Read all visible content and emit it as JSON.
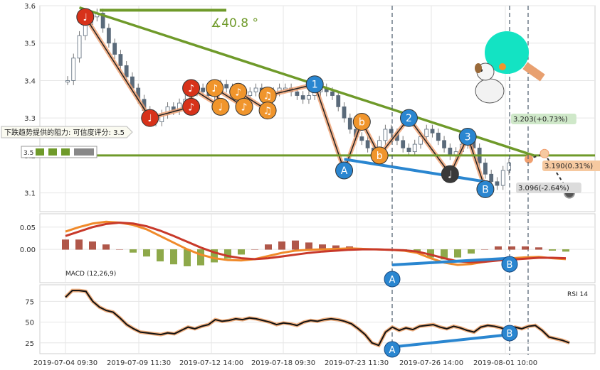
{
  "chart_data": {
    "type": "candlestick-with-indicators",
    "x_ticks": [
      "2019-07-04 09:30",
      "2019-07-09 11:30",
      "2019-07-12 14:00",
      "2019-07-18 09:30",
      "2019-07-23 11:30",
      "2019-07-26 14:00",
      "2019-08-01 10:00"
    ],
    "price_panel": {
      "ylim": [
        3.05,
        3.6
      ],
      "y_ticks": [
        3.1,
        3.2,
        3.3,
        3.4,
        3.5,
        3.6
      ],
      "close": [
        3.4,
        3.46,
        3.52,
        3.55,
        3.57,
        3.58,
        3.54,
        3.5,
        3.47,
        3.44,
        3.41,
        3.38,
        3.35,
        3.32,
        3.3,
        3.29,
        3.31,
        3.33,
        3.32,
        3.34,
        3.35,
        3.37,
        3.38,
        3.37,
        3.36,
        3.38,
        3.39,
        3.38,
        3.37,
        3.36,
        3.36,
        3.37,
        3.38,
        3.37,
        3.36,
        3.37,
        3.38,
        3.38,
        3.37,
        3.36,
        3.35,
        3.36,
        3.37,
        3.38,
        3.37,
        3.36,
        3.33,
        3.3,
        3.27,
        3.25,
        3.24,
        3.22,
        3.2,
        3.24,
        3.27,
        3.26,
        3.24,
        3.22,
        3.21,
        3.23,
        3.25,
        3.27,
        3.26,
        3.24,
        3.22,
        3.2,
        3.21,
        3.23,
        3.24,
        3.22,
        3.18,
        3.15,
        3.13,
        3.12,
        3.16,
        3.18
      ],
      "resistance_label": "下跌趋势提供的阻力: 可信度评分:  3.5",
      "angle_label": "∡40.8 °",
      "price_labels": [
        {
          "text": "3.203(+0.73%)",
          "color": "#cfe8c9"
        },
        {
          "text": "3.190(0.31%)",
          "color": "#f6c9a0"
        },
        {
          "text": "3.096(-2.64%)",
          "color": "#dcdcdc"
        }
      ],
      "level_label": "3.5",
      "pattern_markers": [
        {
          "label": "♩",
          "color": "#d7321a",
          "t": 3,
          "v": 3.57
        },
        {
          "label": "♩",
          "color": "#d7321a",
          "t": 14,
          "v": 3.3
        },
        {
          "label": "♪",
          "color": "#d7321a",
          "t": 21,
          "v": 3.38
        },
        {
          "label": "♪",
          "color": "#d7321a",
          "t": 21,
          "v": 3.33
        },
        {
          "label": "♪",
          "color": "#f0952c",
          "t": 25,
          "v": 3.38
        },
        {
          "label": "♩",
          "color": "#f0952c",
          "t": 26,
          "v": 3.33
        },
        {
          "label": "♪",
          "color": "#f0952c",
          "t": 29,
          "v": 3.37
        },
        {
          "label": "♪",
          "color": "#f0952c",
          "t": 30,
          "v": 3.33
        },
        {
          "label": "♫",
          "color": "#f0952c",
          "t": 34,
          "v": 3.36
        },
        {
          "label": "♫",
          "color": "#f0952c",
          "t": 34,
          "v": 3.32
        },
        {
          "label": "1",
          "color": "#2a86d0",
          "t": 42,
          "v": 3.39
        },
        {
          "label": "A",
          "color": "#2a86d0",
          "t": 47,
          "v": 3.16
        },
        {
          "label": "b",
          "color": "#f0952c",
          "t": 50,
          "v": 3.29
        },
        {
          "label": "b",
          "color": "#f0952c",
          "t": 53,
          "v": 3.2
        },
        {
          "label": "2",
          "color": "#2a86d0",
          "t": 58,
          "v": 3.3
        },
        {
          "label": "♩",
          "color": "#3a3a3a",
          "t": 65,
          "v": 3.15
        },
        {
          "label": "3",
          "color": "#2a86d0",
          "t": 68,
          "v": 3.25
        },
        {
          "label": "B",
          "color": "#2a86d0",
          "t": 71,
          "v": 3.11
        }
      ]
    },
    "macd_panel": {
      "label": "MACD (12,26,9)",
      "ylim": [
        -0.075,
        0.08
      ],
      "y_ticks": [
        0.0,
        0.05
      ],
      "macd": [
        0.04,
        0.05,
        0.058,
        0.062,
        0.06,
        0.055,
        0.045,
        0.03,
        0.015,
        0.0,
        -0.012,
        -0.02,
        -0.024,
        -0.025,
        -0.022,
        -0.015,
        -0.008,
        -0.003,
        -0.001,
        0.0,
        0.001,
        0.002,
        0.001,
        0.0,
        -0.001,
        -0.003,
        -0.008,
        -0.02,
        -0.03,
        -0.035,
        -0.033,
        -0.028,
        -0.022,
        -0.02,
        -0.018,
        -0.017,
        -0.02,
        -0.022
      ],
      "signal": [
        0.03,
        0.04,
        0.05,
        0.057,
        0.06,
        0.058,
        0.052,
        0.042,
        0.03,
        0.017,
        0.004,
        -0.007,
        -0.015,
        -0.02,
        -0.022,
        -0.02,
        -0.016,
        -0.012,
        -0.008,
        -0.005,
        -0.003,
        -0.001,
        0.0,
        0.0,
        -0.001,
        -0.002,
        -0.005,
        -0.012,
        -0.02,
        -0.027,
        -0.029,
        -0.028,
        -0.025,
        -0.023,
        -0.021,
        -0.019,
        -0.019,
        -0.02
      ]
    },
    "rsi_panel": {
      "label": "RSI 14",
      "ylim": [
        12,
        95
      ],
      "y_ticks": [
        25,
        50,
        75
      ],
      "rsi": [
        80,
        88,
        88,
        87,
        75,
        68,
        64,
        62,
        55,
        47,
        42,
        38,
        37,
        36,
        35,
        37,
        36,
        40,
        44,
        42,
        45,
        47,
        53,
        51,
        52,
        54,
        53,
        55,
        54,
        52,
        50,
        47,
        49,
        48,
        46,
        50,
        52,
        51,
        53,
        54,
        53,
        51,
        48,
        42,
        35,
        25,
        22,
        38,
        44,
        40,
        43,
        41,
        45,
        46,
        47,
        44,
        42,
        45,
        43,
        40,
        38,
        44,
        46,
        45,
        43,
        40,
        44,
        42,
        45,
        46,
        40,
        32,
        30,
        28,
        25
      ]
    },
    "cursor_labels": [
      "A",
      "B",
      "A",
      "B"
    ]
  }
}
